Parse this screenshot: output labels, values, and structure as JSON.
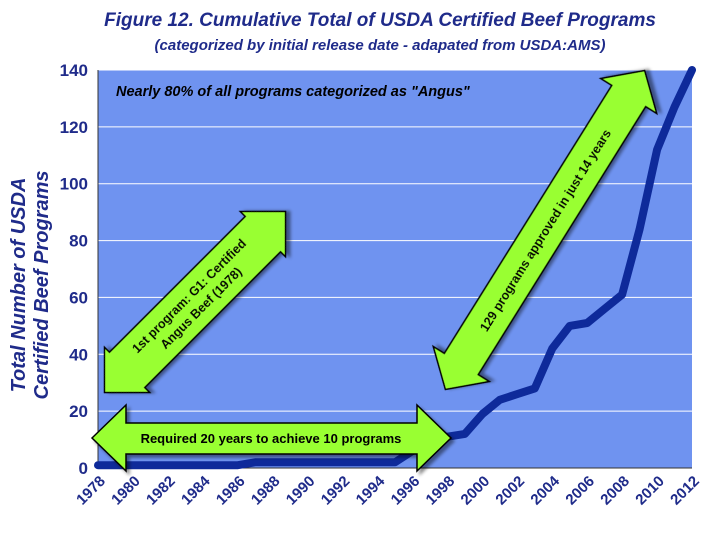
{
  "header": {
    "title": "Figure 12.  Cumulative Total of USDA Certified Beef Programs",
    "subtitle": "(categorized by initial release date - adapated from USDA:AMS)"
  },
  "chart_data": {
    "type": "line",
    "ylabel_line1": "Total Number of USDA",
    "ylabel_line2": "Certified Beef Programs",
    "xlabel": "",
    "xlim": [
      1978,
      2012
    ],
    "ylim": [
      0,
      140
    ],
    "yticks": [
      0,
      20,
      40,
      60,
      80,
      100,
      120,
      140
    ],
    "xticks": [
      "1978",
      "1980",
      "1982",
      "1984",
      "1986",
      "1988",
      "1990",
      "1992",
      "1994",
      "1996",
      "1998",
      "2000",
      "2002",
      "2004",
      "2006",
      "2008",
      "2010",
      "2012"
    ],
    "grid": true,
    "plot_background": "#6F93F0",
    "line_color": "#0E2A9A",
    "series": [
      {
        "x": [
          1978,
          1986,
          1987,
          1995,
          1996,
          1997,
          1998,
          1999,
          2000,
          2001,
          2002,
          2003,
          2004,
          2005,
          2006,
          2007,
          2008,
          2009,
          2010,
          2011,
          2012
        ],
        "y": [
          1,
          1,
          2,
          2,
          6,
          10,
          11,
          12,
          19,
          24,
          26,
          28,
          42,
          50,
          51,
          56,
          61,
          84,
          112,
          127,
          140
        ]
      }
    ],
    "annotations": {
      "top_note": "Nearly 80% of all programs categorized as \"Angus\"",
      "arrow_first_line1": "1st program: G1:  Certified",
      "arrow_first_line2": "Angus Beef (1978)",
      "arrow_recent": "129 programs approved in just 14 years",
      "arrow_twenty_years": "Required 20 years to achieve 10 programs"
    },
    "arrow_fill": "#99FF33"
  }
}
